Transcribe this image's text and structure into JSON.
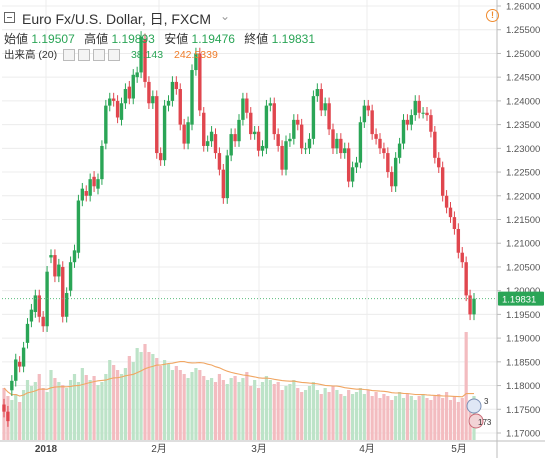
{
  "header": {
    "symbol": "Euro Fx/U.S. Dollar",
    "interval": "日",
    "exchange": "FXCM",
    "title_sep": ", ",
    "open_label": "始値",
    "open": "1.19507",
    "high_label": "高値",
    "high": "1.19893",
    "low_label": "安値",
    "low": "1.19476",
    "close_label": "終値",
    "close": "1.19831"
  },
  "volume_indicator": {
    "label": "出来高 (20)",
    "value1": "38.143",
    "value2": "242.5339"
  },
  "axis": {
    "price_ticks": [
      "1.26000",
      "1.25500",
      "1.25000",
      "1.24500",
      "1.24000",
      "1.23500",
      "1.23000",
      "1.22500",
      "1.22000",
      "1.21500",
      "1.21000",
      "1.20500",
      "1.20000",
      "1.19500",
      "1.19000",
      "1.18500",
      "1.18000",
      "1.17500",
      "1.17000"
    ],
    "time_labels": [
      "2018",
      "2月",
      "3月",
      "4月",
      "5月"
    ],
    "last_price": "1.19831"
  },
  "badges": {
    "events_count": "3",
    "news_count": "173"
  },
  "colors": {
    "up": "#2aa556",
    "down": "#e0464e",
    "vol_up": "#bde3c8",
    "vol_down": "#f3bcc0",
    "ma_line": "#f0a663",
    "grid": "#ececec",
    "last_price_line": "#5bbd7c",
    "last_price_bg": "#2aa556"
  },
  "chart_data": {
    "type": "candlestick",
    "series_open": [
      1.176,
      1.1745,
      1.179,
      1.181,
      1.185,
      1.184,
      1.189,
      1.1935,
      1.1955,
      1.199,
      1.1945,
      1.1925,
      1.207,
      1.2075,
      1.203,
      1.205,
      1.1945,
      1.2,
      1.206,
      1.208,
      1.219,
      1.221,
      1.22,
      1.224,
      1.2215,
      1.2235,
      1.231,
      1.239,
      1.2405,
      1.24,
      1.236,
      1.2395,
      1.243,
      1.2405,
      1.245,
      1.246,
      1.253,
      1.244,
      1.2395,
      1.241,
      1.229,
      1.2275,
      1.239,
      1.24,
      1.244,
      1.2425,
      1.235,
      1.231,
      1.235,
      1.2465,
      1.25,
      1.2375,
      1.2305,
      1.2315,
      1.233,
      1.229,
      1.2255,
      1.2195,
      1.2285,
      1.233,
      1.2315,
      1.236,
      1.2405,
      1.2375,
      1.233,
      1.2335,
      1.2295,
      1.23,
      1.239,
      1.2395,
      1.233,
      1.2305,
      1.2255,
      1.2315,
      1.232,
      1.236,
      1.235,
      1.23,
      1.23,
      1.232,
      1.241,
      1.2425,
      1.238,
      1.2395,
      1.234,
      1.23,
      1.232,
      1.229,
      1.23,
      1.223,
      1.226,
      1.227,
      1.2355,
      1.239,
      1.238,
      1.233,
      1.232,
      1.23,
      1.229,
      1.225,
      1.222,
      1.228,
      1.231,
      1.236,
      1.235,
      1.237,
      1.24,
      1.2375,
      1.2375,
      1.237,
      1.2335,
      1.228,
      1.226,
      1.22,
      1.2175,
      1.2155,
      1.213,
      1.208,
      1.206,
      1.199,
      1.195
    ],
    "series_close": [
      1.1745,
      1.1725,
      1.181,
      1.1855,
      1.184,
      1.188,
      1.193,
      1.196,
      1.199,
      1.1945,
      1.1925,
      1.204,
      1.2075,
      1.203,
      1.2055,
      1.1945,
      1.1995,
      1.206,
      1.2085,
      1.219,
      1.2215,
      1.22,
      1.2235,
      1.222,
      1.2235,
      1.2305,
      1.239,
      1.2405,
      1.24,
      1.2365,
      1.2395,
      1.2425,
      1.2405,
      1.2455,
      1.246,
      1.2535,
      1.244,
      1.2395,
      1.241,
      1.229,
      1.2275,
      1.239,
      1.24,
      1.244,
      1.2425,
      1.235,
      1.231,
      1.2355,
      1.2465,
      1.25,
      1.238,
      1.2305,
      1.2315,
      1.2335,
      1.229,
      1.2255,
      1.2195,
      1.2285,
      1.233,
      1.2315,
      1.236,
      1.2405,
      1.2375,
      1.233,
      1.2335,
      1.2295,
      1.2305,
      1.239,
      1.2395,
      1.233,
      1.2305,
      1.2255,
      1.2315,
      1.232,
      1.236,
      1.235,
      1.23,
      1.23,
      1.232,
      1.241,
      1.2425,
      1.238,
      1.2395,
      1.234,
      1.23,
      1.232,
      1.229,
      1.23,
      1.223,
      1.226,
      1.227,
      1.2355,
      1.239,
      1.238,
      1.233,
      1.232,
      1.23,
      1.229,
      1.225,
      1.222,
      1.228,
      1.231,
      1.236,
      1.235,
      1.237,
      1.24,
      1.2375,
      1.2375,
      1.237,
      1.2335,
      1.228,
      1.226,
      1.22,
      1.2175,
      1.2155,
      1.213,
      1.208,
      1.206,
      1.199,
      1.195,
      1.1983
    ],
    "volume": [
      52,
      44,
      40,
      46,
      38,
      50,
      60,
      54,
      58,
      66,
      52,
      48,
      70,
      62,
      58,
      55,
      52,
      60,
      66,
      58,
      72,
      65,
      60,
      64,
      55,
      58,
      66,
      80,
      75,
      70,
      66,
      72,
      84,
      78,
      92,
      88,
      96,
      88,
      86,
      82,
      74,
      80,
      76,
      70,
      74,
      70,
      66,
      62,
      68,
      72,
      70,
      64,
      60,
      62,
      58,
      66,
      60,
      56,
      62,
      64,
      58,
      62,
      68,
      54,
      60,
      52,
      58,
      64,
      60,
      56,
      58,
      50,
      54,
      56,
      60,
      52,
      48,
      50,
      54,
      58,
      50,
      46,
      52,
      48,
      54,
      50,
      46,
      44,
      50,
      46,
      48,
      52,
      46,
      50,
      44,
      48,
      42,
      46,
      44,
      40,
      44,
      48,
      42,
      46,
      44,
      40,
      44,
      46,
      42,
      40,
      44,
      46,
      42,
      48,
      40,
      44,
      38,
      42,
      108,
      40,
      44
    ]
  }
}
